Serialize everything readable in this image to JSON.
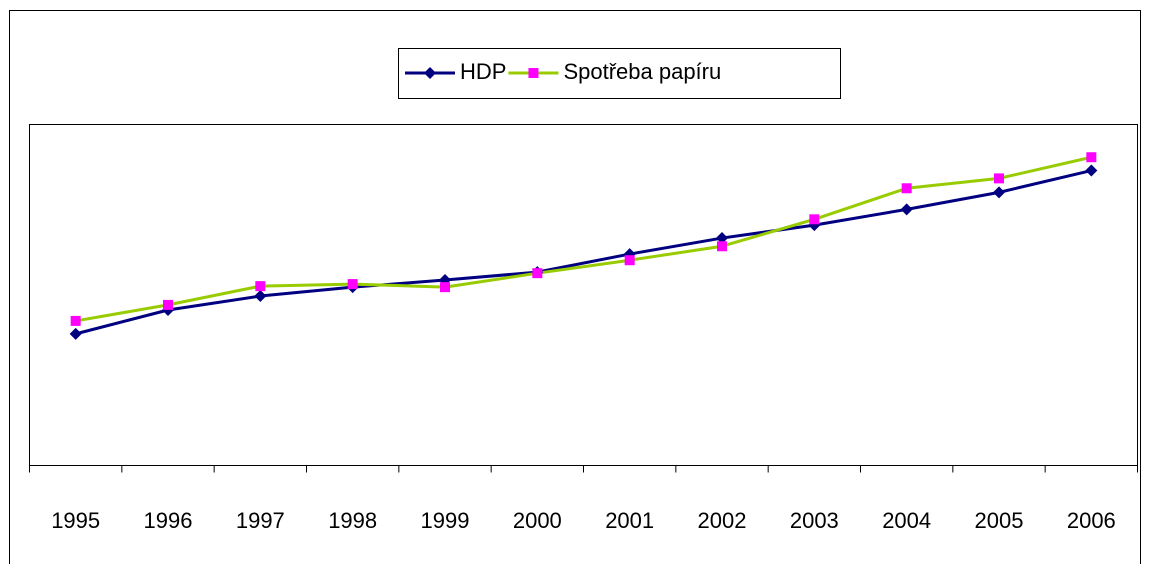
{
  "chart_data": {
    "type": "line",
    "categories": [
      "1995",
      "1996",
      "1997",
      "1998",
      "1999",
      "2000",
      "2001",
      "2002",
      "2003",
      "2004",
      "2005",
      "2006"
    ],
    "series": [
      {
        "name": "HDP",
        "color": "#000080",
        "line_color": "#000080",
        "marker": "diamond",
        "values": [
          38.6,
          45.6,
          49.7,
          52.3,
          54.4,
          56.7,
          62.0,
          66.7,
          70.5,
          75.1,
          80.1,
          86.5
        ]
      },
      {
        "name": "Spotřeba papíru",
        "color": "#ff00ff",
        "line_color": "#99cc00",
        "marker": "square",
        "values": [
          42.4,
          47.1,
          52.6,
          53.2,
          52.3,
          56.4,
          60.2,
          64.3,
          72.2,
          81.3,
          84.2,
          90.4
        ]
      }
    ],
    "ylim": [
      0,
      100
    ],
    "legend": "top"
  }
}
